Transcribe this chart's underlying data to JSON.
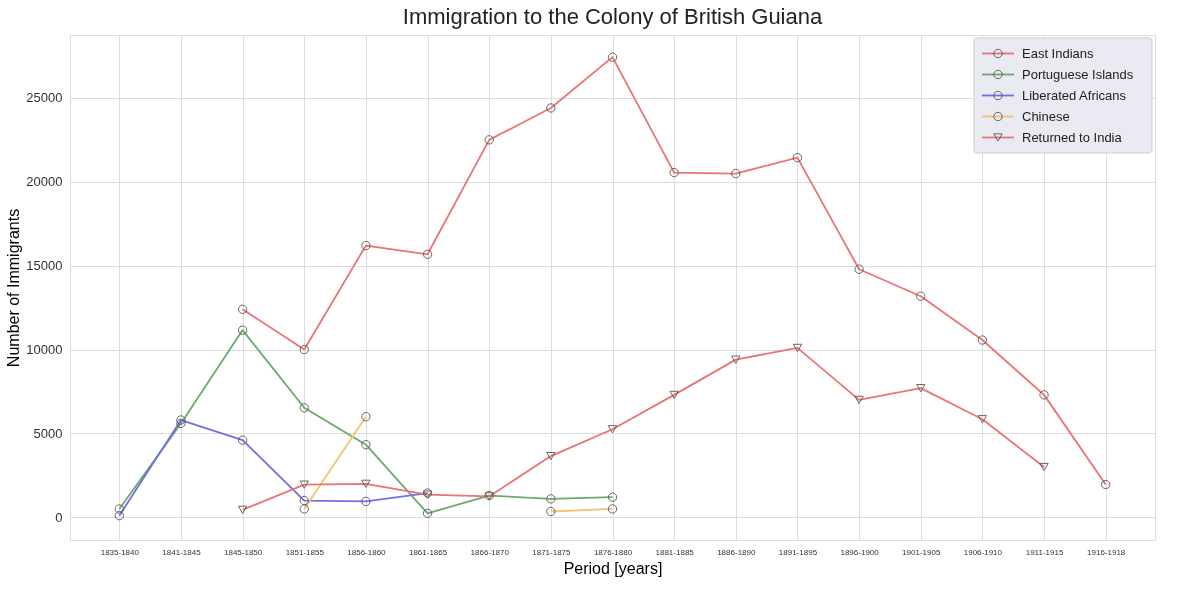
{
  "chart_data": {
    "type": "line",
    "title": "Immigration to the Colony of British Guiana",
    "xlabel": "Period [years]",
    "ylabel": "Number of Immigrants",
    "categories": [
      "1835-1840",
      "1841-1845",
      "1845-1850",
      "1851-1855",
      "1856-1860",
      "1861-1865",
      "1866-1870",
      "1871-1875",
      "1876-1880",
      "1881-1885",
      "1886-1890",
      "1891-1895",
      "1896-1900",
      "1901-1905",
      "1906-1910",
      "1911-1915",
      "1916-1918"
    ],
    "series": [
      {
        "name": "East Indians",
        "color": "#ec7373",
        "marker": "circle",
        "values": [
          null,
          null,
          12400,
          10000,
          16200,
          15680,
          22500,
          24400,
          27430,
          20550,
          20490,
          21440,
          14790,
          13180,
          10570,
          7300,
          1960
        ]
      },
      {
        "name": "Portuguese Islands",
        "color": "#6aab6a",
        "marker": "circle",
        "values": [
          500,
          5600,
          11160,
          6530,
          4330,
          240,
          1300,
          1100,
          1200,
          null,
          null,
          null,
          null,
          null,
          null,
          null,
          null
        ]
      },
      {
        "name": "Liberated Africans",
        "color": "#6f6fe8",
        "marker": "circle",
        "values": [
          100,
          5800,
          4600,
          1000,
          950,
          1450,
          null,
          null,
          null,
          null,
          null,
          null,
          null,
          null,
          null,
          null,
          null
        ]
      },
      {
        "name": "Chinese",
        "color": "#f3c370",
        "marker": "circle",
        "values": [
          null,
          null,
          null,
          500,
          6000,
          null,
          null,
          350,
          500,
          null,
          null,
          null,
          null,
          null,
          null,
          null,
          null
        ]
      },
      {
        "name": "Returned to India",
        "color": "#ec7373",
        "marker": "triangle",
        "values": [
          null,
          null,
          450,
          1950,
          2000,
          1350,
          1250,
          3650,
          5250,
          7300,
          9400,
          10100,
          7000,
          7700,
          5850,
          3000,
          null
        ]
      }
    ],
    "ylim": [
      -1350,
      28750
    ],
    "yticks": [
      0,
      5000,
      10000,
      15000,
      20000,
      25000
    ],
    "grid": true,
    "legend": "top right"
  }
}
